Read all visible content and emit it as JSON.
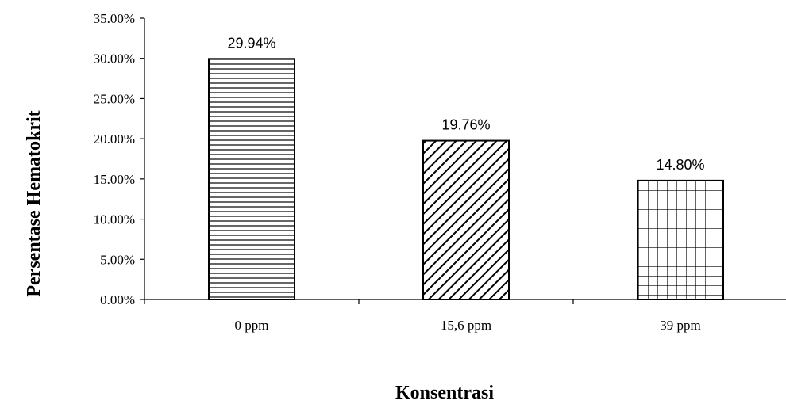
{
  "chart_data": {
    "type": "bar",
    "categories": [
      "0 ppm",
      "15,6 ppm",
      "39 ppm"
    ],
    "values": [
      29.94,
      19.76,
      14.8
    ],
    "data_labels": [
      "29.94%",
      "19.76%",
      "14.80%"
    ],
    "ylim": [
      0,
      35
    ],
    "yticks": [
      0,
      5,
      10,
      15,
      20,
      25,
      30,
      35
    ],
    "ytick_labels": [
      "0.00%",
      "5.00%",
      "10.00%",
      "15.00%",
      "20.00%",
      "25.00%",
      "30.00%",
      "35.00%"
    ],
    "xlabel": "Konsentrasi",
    "ylabel": "Persentase Hematokrit",
    "grid": false,
    "legend": "none",
    "bar_patterns": [
      "horizontal-lines",
      "diagonal-lines",
      "grid"
    ],
    "colors": {
      "bar_fill": "#ffffff",
      "stroke": "#000000"
    }
  }
}
